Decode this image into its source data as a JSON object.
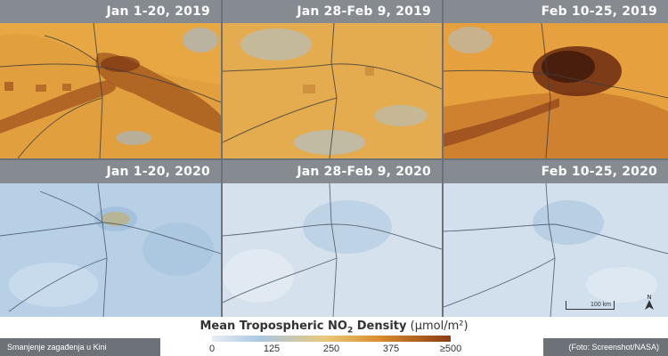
{
  "panels": [
    {
      "id": "p1",
      "label": "Jan 1-20, 2019",
      "theme": "2019a"
    },
    {
      "id": "p2",
      "label": "Jan 28-Feb 9, 2019",
      "theme": "2019b"
    },
    {
      "id": "p3",
      "label": "Feb 10-25, 2019",
      "theme": "2019c"
    },
    {
      "id": "p4",
      "label": "Jan 1-20, 2020",
      "theme": "2020a"
    },
    {
      "id": "p5",
      "label": "Jan 28-Feb 9, 2020",
      "theme": "2020b"
    },
    {
      "id": "p6",
      "label": "Feb 10-25, 2020",
      "theme": "2020c"
    }
  ],
  "scale": {
    "label": "100 km"
  },
  "legend": {
    "title_main": "Mean Tropospheric NO",
    "title_sub": "2",
    "title_rest": " Density",
    "title_unit": "(μmol/m²)",
    "ticks": [
      "0",
      "125",
      "250",
      "375",
      "≥500"
    ]
  },
  "captions": {
    "left": "Smanjenje zagađenja u Kini",
    "right": "(Foto: Screenshot/NASA)"
  },
  "colors": {
    "low": "#e9eef6",
    "mid_blue": "#a9c7e2",
    "mid_orange": "#e9c87a",
    "high": "#8a3c14",
    "label_bg": "#868b91"
  }
}
